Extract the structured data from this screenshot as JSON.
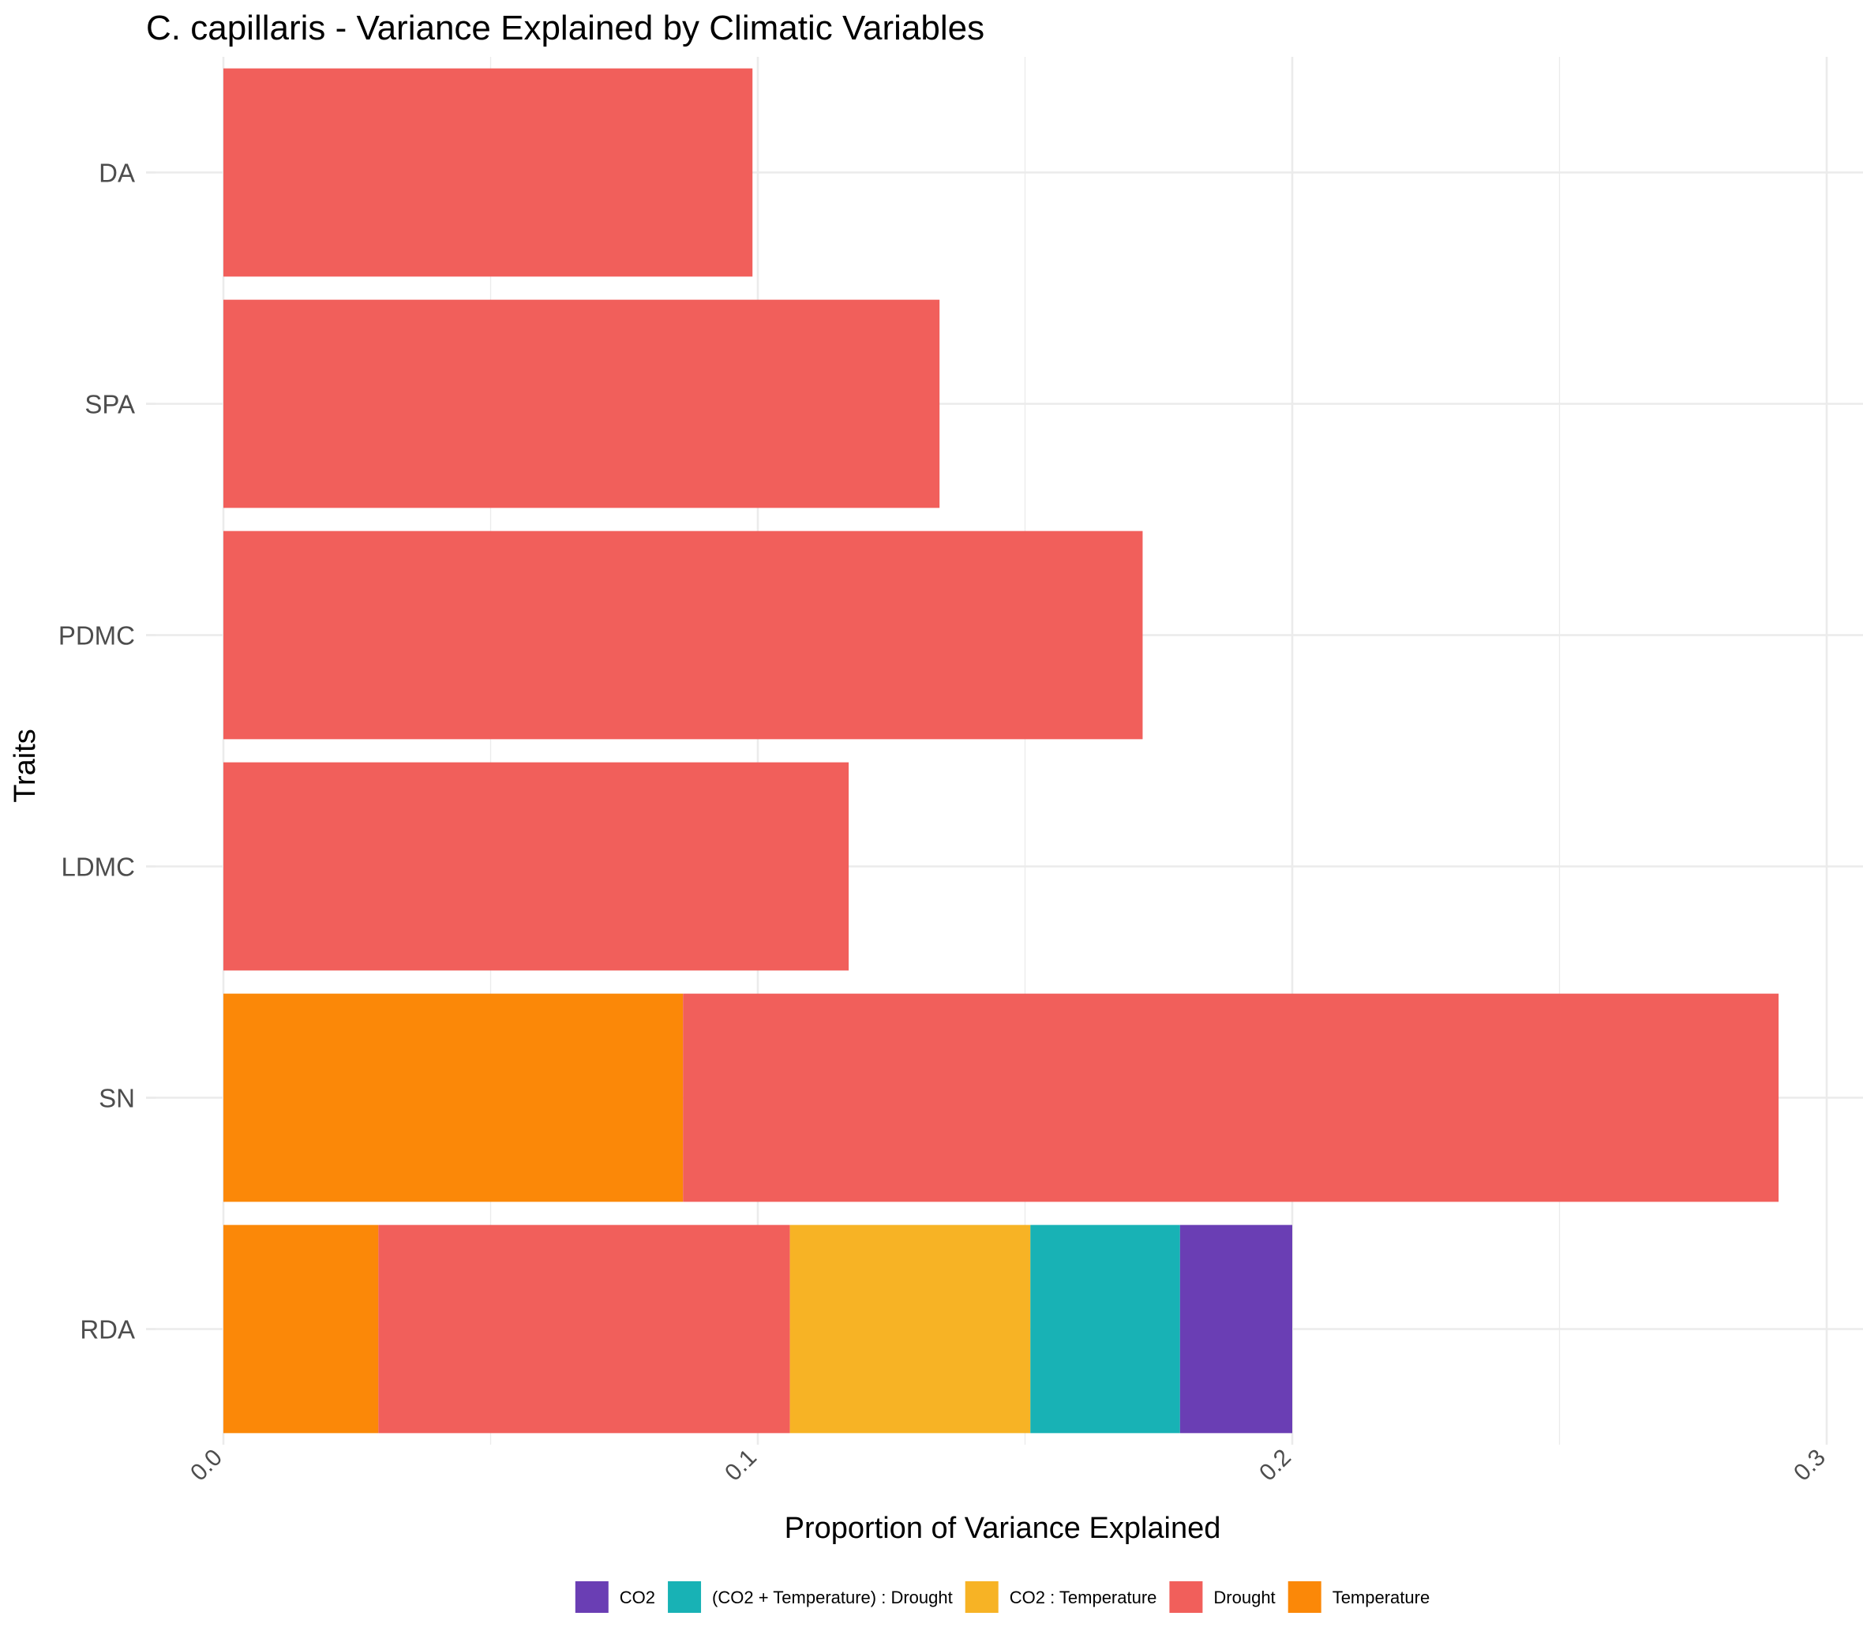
{
  "chart_data": {
    "type": "bar",
    "orientation": "horizontal",
    "stacked": true,
    "title": "C. capillaris - Variance Explained by Climatic Variables",
    "xlabel": "Proportion of Variance Explained",
    "ylabel": "Traits",
    "xlim": [
      0,
      0.3
    ],
    "x_ticks": [
      "0.0",
      "0.1",
      "0.2",
      "0.3"
    ],
    "grid": true,
    "legend_position": "bottom",
    "categories": [
      "RDA",
      "SN",
      "LDMC",
      "PDMC",
      "SPA",
      "DA"
    ],
    "series": [
      {
        "name": "Temperature",
        "color": "#FB8808",
        "values": [
          0.029,
          0.086,
          0,
          0,
          0,
          0
        ]
      },
      {
        "name": "Drought",
        "color": "#F15F5B",
        "values": [
          0.077,
          0.205,
          0.117,
          0.172,
          0.134,
          0.099
        ]
      },
      {
        "name": "CO2 : Temperature",
        "color": "#F7B325",
        "values": [
          0.045,
          0,
          0,
          0,
          0,
          0
        ]
      },
      {
        "name": "(CO2 + Temperature) : Drought",
        "color": "#18B2B5",
        "values": [
          0.028,
          0,
          0,
          0,
          0,
          0
        ]
      },
      {
        "name": "CO2",
        "color": "#6A3EB4",
        "values": [
          0.021,
          0,
          0,
          0,
          0,
          0
        ]
      }
    ],
    "legend_order": [
      "CO2",
      "(CO2 + Temperature) : Drought",
      "CO2 : Temperature",
      "Drought",
      "Temperature"
    ]
  }
}
